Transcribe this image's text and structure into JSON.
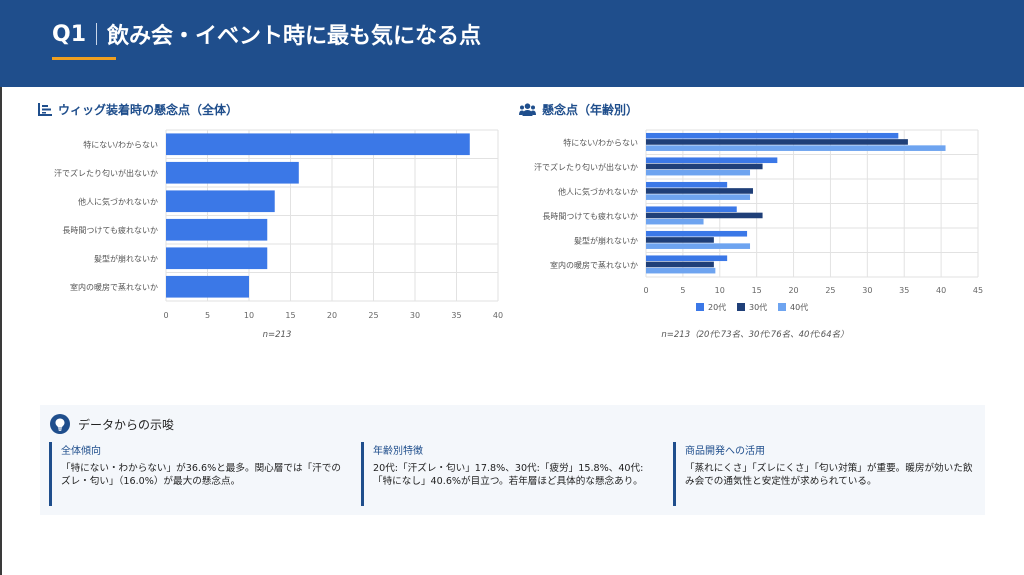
{
  "header": {
    "q_label": "Q1",
    "title": "飲み会・イベント時に最も気になる点"
  },
  "left_panel": {
    "title": "ウィッグ装着時の懸念点（全体）",
    "note": "n=213"
  },
  "right_panel": {
    "title": "懸念点（年齢別）",
    "note": "n=213（20代:73名、30代:76名、40代:64名）",
    "legend": [
      "20代",
      "30代",
      "40代"
    ]
  },
  "chart_data": [
    {
      "type": "bar",
      "orientation": "horizontal",
      "title": "ウィッグ装着時の懸念点（全体）",
      "categories": [
        "特にない/わからない",
        "汗でズレたり匂いが出ないか",
        "他人に気づかれないか",
        "長時間つけても疲れないか",
        "髪型が崩れないか",
        "室内の暖房で蒸れないか"
      ],
      "values": [
        36.6,
        16.0,
        13.1,
        12.2,
        12.2,
        10.0
      ],
      "xlim": [
        0,
        40
      ],
      "xticks": [
        0,
        5,
        10,
        15,
        20,
        25,
        30,
        35,
        40
      ],
      "grid": true,
      "colors": {
        "bar": "#3b78e7"
      }
    },
    {
      "type": "bar",
      "orientation": "horizontal",
      "title": "懸念点（年齢別）",
      "categories": [
        "特にない/わからない",
        "汗でズレたり匂いが出ないか",
        "他人に気づかれないか",
        "長時間つけても疲れないか",
        "髪型が崩れないか",
        "室内の暖房で蒸れないか"
      ],
      "series": [
        {
          "name": "20代",
          "values": [
            34.2,
            17.8,
            11.0,
            12.3,
            13.7,
            11.0
          ],
          "color": "#3b78e7"
        },
        {
          "name": "30代",
          "values": [
            35.5,
            15.8,
            14.5,
            15.8,
            9.2,
            9.2
          ],
          "color": "#1f3f78"
        },
        {
          "name": "40代",
          "values": [
            40.6,
            14.1,
            14.1,
            7.8,
            14.1,
            9.4
          ],
          "color": "#6ea4f0"
        }
      ],
      "xlim": [
        0,
        45
      ],
      "xticks": [
        0,
        5,
        10,
        15,
        20,
        25,
        30,
        35,
        40,
        45
      ],
      "grid": true,
      "legend": "bottom"
    }
  ],
  "insights": {
    "title": "データからの示唆",
    "columns": [
      {
        "title": "全体傾向",
        "text": "「特にない・わからない」が36.6%と最多。関心層では「汗でのズレ・匂い」（16.0%）が最大の懸念点。"
      },
      {
        "title": "年齢別特徴",
        "text": "20代:「汗ズレ・匂い」17.8%、30代:「疲労」15.8%、40代:「特になし」40.6%が目立つ。若年層ほど具体的な懸念あり。"
      },
      {
        "title": "商品開発への活用",
        "text": "「蒸れにくさ」「ズレにくさ」「匂い対策」が重要。暖房が効いた飲み会での通気性と安定性が求められている。"
      }
    ]
  }
}
